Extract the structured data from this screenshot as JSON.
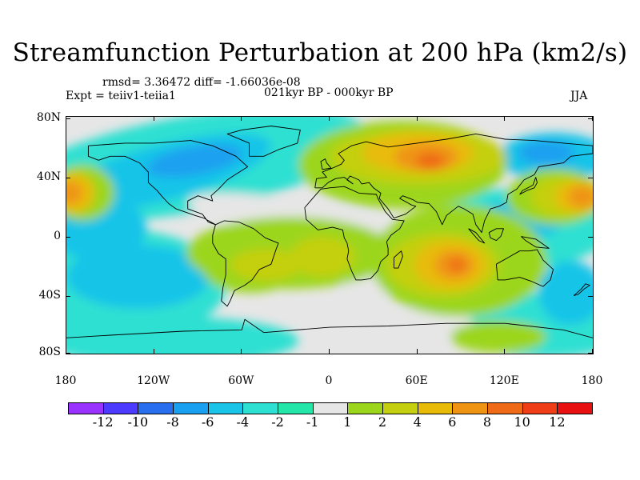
{
  "title": "Streamfunction Perturbation at 200 hPa (km2/s)",
  "stats": "rmsd= 3.36472 diff= -1.66036e-08",
  "experiment": "Expt = teiiv1-teiia1",
  "period": "021kyr BP - 000kyr BP",
  "season": "JJA",
  "lat_labels": [
    "80N",
    "40N",
    "0",
    "40S",
    "80S"
  ],
  "lon_labels": [
    "180",
    "120W",
    "60W",
    "0",
    "60E",
    "120E",
    "180"
  ],
  "colorbar": {
    "labels": [
      "-12",
      "-10",
      "-8",
      "-6",
      "-4",
      "-2",
      "-1",
      "1",
      "2",
      "4",
      "6",
      "8",
      "10",
      "12"
    ],
    "colors": [
      "#9a33ff",
      "#4d3aff",
      "#2a6ef0",
      "#1aa0f0",
      "#19c4e8",
      "#2de0d2",
      "#23e6a8",
      "#e6e6e6",
      "#9cd61c",
      "#c4cf10",
      "#e8bb08",
      "#ef9412",
      "#ef6a16",
      "#ef3d18",
      "#e81010"
    ]
  },
  "map_colors": {
    "background": "#e6e6e6",
    "neg_weak": "#2de0d2",
    "neg_mid": "#19c4e8",
    "neg_strong": "#1aa0f0",
    "pos_weak": "#9cd61c",
    "pos_mid": "#c4cf10",
    "pos_strong": "#e8bb08",
    "pos_hi": "#ef9412",
    "pos_max": "#ef6a16"
  }
}
